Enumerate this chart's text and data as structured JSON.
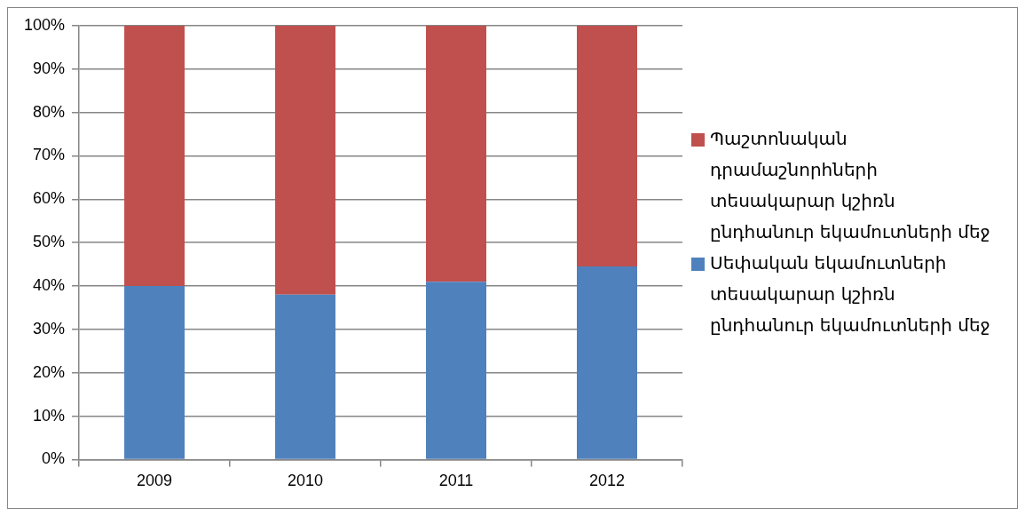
{
  "chart_data": {
    "type": "bar",
    "stacked": true,
    "categories": [
      "2009",
      "2010",
      "2011",
      "2012"
    ],
    "series": [
      {
        "name": "Սեփական եկամուտների տեսակարար կշիռն ընդհանուր եկամուտների մեջ",
        "color": "#4f81bd",
        "values": [
          40,
          38,
          41,
          44.5
        ]
      },
      {
        "name": "Պաշտոնական դրամաշնորհների տեսակարար կշիռն ընդհանուր եկամուտների մեջ",
        "color": "#c0504d",
        "values": [
          60,
          62,
          59,
          55.5
        ]
      }
    ],
    "ylim": [
      0,
      100
    ],
    "yticks": [
      {
        "value": 0,
        "label": "0%"
      },
      {
        "value": 10,
        "label": "10%"
      },
      {
        "value": 20,
        "label": "20%"
      },
      {
        "value": 30,
        "label": "30%"
      },
      {
        "value": 40,
        "label": "40%"
      },
      {
        "value": 50,
        "label": "50%"
      },
      {
        "value": 60,
        "label": "60%"
      },
      {
        "value": 70,
        "label": "70%"
      },
      {
        "value": 80,
        "label": "80%"
      },
      {
        "value": 90,
        "label": "90%"
      },
      {
        "value": 100,
        "label": "100%"
      }
    ],
    "grid": "y",
    "legend": "right"
  }
}
